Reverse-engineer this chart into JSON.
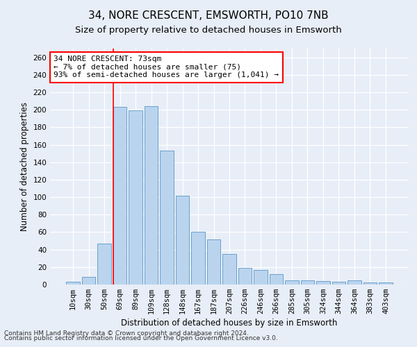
{
  "title": "34, NORE CRESCENT, EMSWORTH, PO10 7NB",
  "subtitle": "Size of property relative to detached houses in Emsworth",
  "xlabel": "Distribution of detached houses by size in Emsworth",
  "ylabel": "Number of detached properties",
  "categories": [
    "10sqm",
    "30sqm",
    "50sqm",
    "69sqm",
    "89sqm",
    "109sqm",
    "128sqm",
    "148sqm",
    "167sqm",
    "187sqm",
    "207sqm",
    "226sqm",
    "246sqm",
    "266sqm",
    "285sqm",
    "305sqm",
    "324sqm",
    "344sqm",
    "364sqm",
    "383sqm",
    "403sqm"
  ],
  "values": [
    3,
    9,
    47,
    203,
    199,
    204,
    153,
    102,
    60,
    52,
    35,
    19,
    17,
    12,
    5,
    5,
    4,
    3,
    5,
    2,
    2
  ],
  "bar_color": "#bad4ee",
  "bar_edge_color": "#6aa0cc",
  "highlight_bin_index": 3,
  "annotation_text": "34 NORE CRESCENT: 73sqm\n← 7% of detached houses are smaller (75)\n93% of semi-detached houses are larger (1,041) →",
  "annotation_box_color": "white",
  "annotation_box_edge_color": "red",
  "ylim": [
    0,
    270
  ],
  "yticks": [
    0,
    20,
    40,
    60,
    80,
    100,
    120,
    140,
    160,
    180,
    200,
    220,
    240,
    260
  ],
  "footer_line1": "Contains HM Land Registry data © Crown copyright and database right 2024.",
  "footer_line2": "Contains public sector information licensed under the Open Government Licence v3.0.",
  "bg_color": "#e8eef7",
  "grid_color": "white",
  "title_fontsize": 11,
  "subtitle_fontsize": 9.5,
  "axis_label_fontsize": 8.5,
  "tick_fontsize": 7.5,
  "annotation_fontsize": 8,
  "footer_fontsize": 6.5
}
